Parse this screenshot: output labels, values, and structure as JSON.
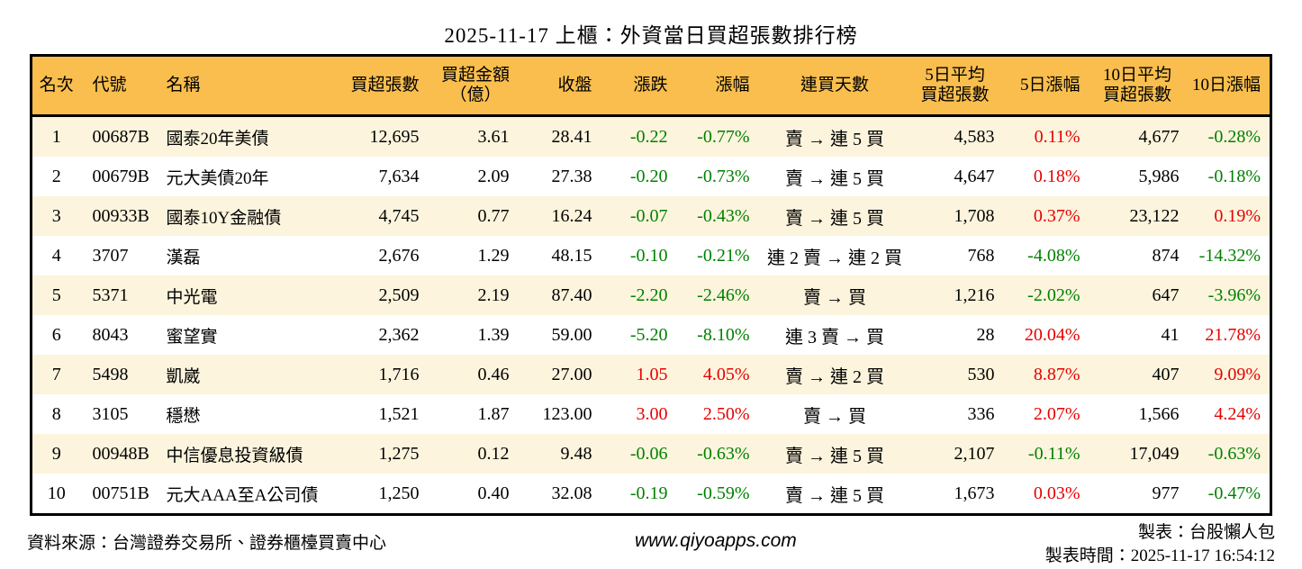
{
  "title": "2025-11-17 上櫃：外資當日買超張數排行榜",
  "colors": {
    "header_bg": "#f9be4d",
    "row_alt_bg": "#fcf4dd",
    "up": "#e60000",
    "down": "#008000",
    "border": "#000000"
  },
  "chart_data": {
    "type": "table",
    "title": "2025-11-17 上櫃：外資當日買超張數排行榜",
    "columns": [
      {
        "key": "rank",
        "label": "名次",
        "align": "ac"
      },
      {
        "key": "code",
        "label": "代號",
        "align": "al"
      },
      {
        "key": "name",
        "label": "名稱",
        "align": "al"
      },
      {
        "key": "vol",
        "label": "買超張數",
        "align": "ar"
      },
      {
        "key": "amt",
        "label": "買超金額\n（億）",
        "align": "ar"
      },
      {
        "key": "close",
        "label": "收盤",
        "align": "ar"
      },
      {
        "key": "chg",
        "label": "漲跌",
        "align": "ar",
        "signed": true
      },
      {
        "key": "chg_pct",
        "label": "漲幅",
        "align": "ar",
        "signed": true
      },
      {
        "key": "streak",
        "label": "連買天數",
        "align": "ac"
      },
      {
        "key": "avg5",
        "label": "5日平均\n買超張數",
        "align": "ar"
      },
      {
        "key": "pct5",
        "label": "5日漲幅",
        "align": "ar",
        "signed": true
      },
      {
        "key": "avg10",
        "label": "10日平均\n買超張數",
        "align": "ar"
      },
      {
        "key": "pct10",
        "label": "10日漲幅",
        "align": "ar",
        "signed": true
      }
    ],
    "rows": [
      {
        "rank": "1",
        "code": "00687B",
        "name": "國泰20年美債",
        "vol": "12,695",
        "amt": "3.61",
        "close": "28.41",
        "chg": "-0.22",
        "chg_pct": "-0.77%",
        "streak": "賣 → 連 5 買",
        "avg5": "4,583",
        "pct5": "0.11%",
        "avg10": "4,677",
        "pct10": "-0.28%"
      },
      {
        "rank": "2",
        "code": "00679B",
        "name": "元大美債20年",
        "vol": "7,634",
        "amt": "2.09",
        "close": "27.38",
        "chg": "-0.20",
        "chg_pct": "-0.73%",
        "streak": "賣 → 連 5 買",
        "avg5": "4,647",
        "pct5": "0.18%",
        "avg10": "5,986",
        "pct10": "-0.18%"
      },
      {
        "rank": "3",
        "code": "00933B",
        "name": "國泰10Y金融債",
        "vol": "4,745",
        "amt": "0.77",
        "close": "16.24",
        "chg": "-0.07",
        "chg_pct": "-0.43%",
        "streak": "賣 → 連 5 買",
        "avg5": "1,708",
        "pct5": "0.37%",
        "avg10": "23,122",
        "pct10": "0.19%"
      },
      {
        "rank": "4",
        "code": "3707",
        "name": "漢磊",
        "vol": "2,676",
        "amt": "1.29",
        "close": "48.15",
        "chg": "-0.10",
        "chg_pct": "-0.21%",
        "streak": "連 2 賣 → 連 2 買",
        "avg5": "768",
        "pct5": "-4.08%",
        "avg10": "874",
        "pct10": "-14.32%"
      },
      {
        "rank": "5",
        "code": "5371",
        "name": "中光電",
        "vol": "2,509",
        "amt": "2.19",
        "close": "87.40",
        "chg": "-2.20",
        "chg_pct": "-2.46%",
        "streak": "賣 → 買",
        "avg5": "1,216",
        "pct5": "-2.02%",
        "avg10": "647",
        "pct10": "-3.96%"
      },
      {
        "rank": "6",
        "code": "8043",
        "name": "蜜望實",
        "vol": "2,362",
        "amt": "1.39",
        "close": "59.00",
        "chg": "-5.20",
        "chg_pct": "-8.10%",
        "streak": "連 3 賣 → 買",
        "avg5": "28",
        "pct5": "20.04%",
        "avg10": "41",
        "pct10": "21.78%"
      },
      {
        "rank": "7",
        "code": "5498",
        "name": "凱崴",
        "vol": "1,716",
        "amt": "0.46",
        "close": "27.00",
        "chg": "1.05",
        "chg_pct": "4.05%",
        "streak": "賣 → 連 2 買",
        "avg5": "530",
        "pct5": "8.87%",
        "avg10": "407",
        "pct10": "9.09%"
      },
      {
        "rank": "8",
        "code": "3105",
        "name": "穩懋",
        "vol": "1,521",
        "amt": "1.87",
        "close": "123.00",
        "chg": "3.00",
        "chg_pct": "2.50%",
        "streak": "賣 → 買",
        "avg5": "336",
        "pct5": "2.07%",
        "avg10": "1,566",
        "pct10": "4.24%"
      },
      {
        "rank": "9",
        "code": "00948B",
        "name": "中信優息投資級債",
        "vol": "1,275",
        "amt": "0.12",
        "close": "9.48",
        "chg": "-0.06",
        "chg_pct": "-0.63%",
        "streak": "賣 → 連 5 買",
        "avg5": "2,107",
        "pct5": "-0.11%",
        "avg10": "17,049",
        "pct10": "-0.63%"
      },
      {
        "rank": "10",
        "code": "00751B",
        "name": "元大AAA至A公司債",
        "vol": "1,250",
        "amt": "0.40",
        "close": "32.08",
        "chg": "-0.19",
        "chg_pct": "-0.59%",
        "streak": "賣 → 連 5 買",
        "avg5": "1,673",
        "pct5": "0.03%",
        "avg10": "977",
        "pct10": "-0.47%"
      }
    ]
  },
  "footer": {
    "source": "資料來源：台灣證券交易所、證券櫃檯買賣中心",
    "website": "www.qiyoapps.com",
    "author": "製表：台股懶人包",
    "generated": "製表時間：2025-11-17 16:54:12"
  }
}
